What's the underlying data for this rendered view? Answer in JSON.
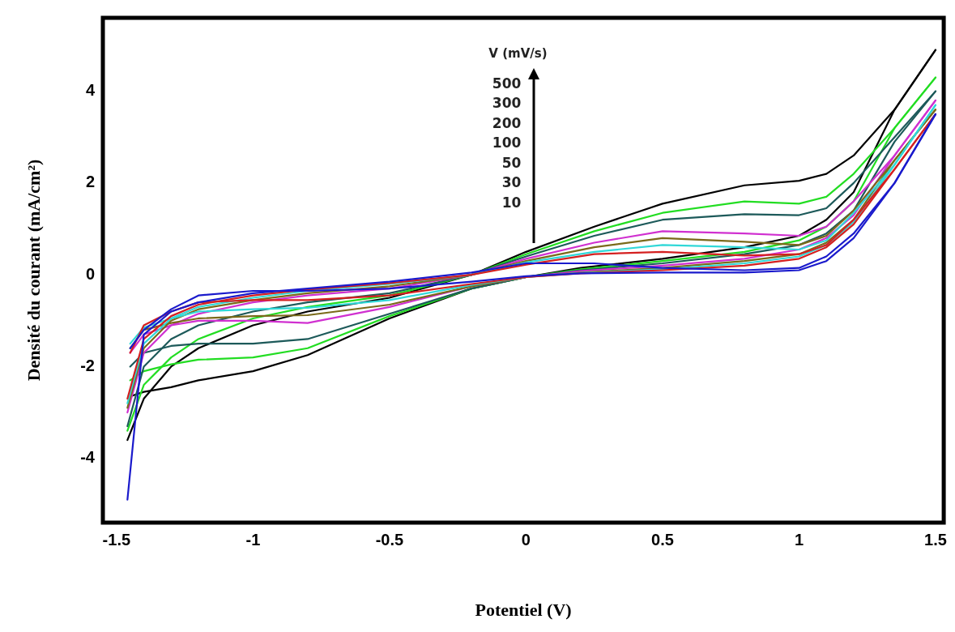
{
  "chart_data": {
    "type": "line",
    "xlabel": "Potentiel (V)",
    "ylabel": "Densité du courant (mA/cm²)",
    "annotations": [
      "V (mV/s)",
      "500",
      "300",
      "200",
      "100",
      "50",
      "30",
      "10"
    ],
    "xlim": [
      -1.55,
      1.53
    ],
    "ylim": [
      -5.4,
      5.6
    ],
    "xticks": [
      -1.5,
      -1,
      -0.5,
      0,
      0.5,
      1,
      1.5
    ],
    "yticks": [
      -4,
      -2,
      0,
      2,
      4
    ],
    "grid": false,
    "legend": false,
    "marker": "none",
    "line_style": "solid",
    "series": [
      {
        "color": "#1a1acc",
        "x": [
          -1.46,
          -1.4,
          -1.3,
          -1.2,
          -1.0,
          -0.8,
          -0.5,
          -0.2,
          0,
          0.25,
          0.5,
          0.8,
          1.0,
          1.1,
          1.2,
          1.35,
          1.5
        ],
        "values": [
          -4.9,
          -1.3,
          -0.8,
          -0.6,
          -0.4,
          -0.3,
          -0.15,
          0.05,
          0.25,
          0.25,
          0.15,
          0.1,
          0.15,
          0.4,
          0.9,
          2.0,
          3.5
        ]
      },
      {
        "color": "#1a1acc",
        "x": [
          -1.45,
          -1.4,
          -1.3,
          -1.2,
          -1.0,
          -0.8,
          -0.5,
          -0.2,
          0,
          0.2,
          0.5,
          0.8,
          1.0,
          1.1,
          1.2,
          1.35,
          1.5
        ],
        "values": [
          -1.6,
          -1.2,
          -0.75,
          -0.45,
          -0.35,
          -0.35,
          -0.3,
          -0.15,
          -0.03,
          0.03,
          0.05,
          0.05,
          0.1,
          0.3,
          0.8,
          2.0,
          3.5
        ]
      },
      {
        "color": "#d42020",
        "x": [
          -1.46,
          -1.4,
          -1.3,
          -1.2,
          -1.0,
          -0.8,
          -0.5,
          -0.2,
          0,
          0.25,
          0.5,
          0.8,
          1.0,
          1.1,
          1.2,
          1.35,
          1.5
        ],
        "values": [
          -2.7,
          -1.4,
          -0.9,
          -0.65,
          -0.45,
          -0.32,
          -0.18,
          0.0,
          0.22,
          0.45,
          0.5,
          0.42,
          0.45,
          0.65,
          1.2,
          2.3,
          3.5
        ]
      },
      {
        "color": "#d42020",
        "x": [
          -1.45,
          -1.4,
          -1.3,
          -1.2,
          -1.0,
          -0.8,
          -0.5,
          -0.2,
          0,
          0.2,
          0.5,
          0.8,
          1.0,
          1.1,
          1.2,
          1.35,
          1.5
        ],
        "values": [
          -1.7,
          -1.1,
          -0.8,
          -0.6,
          -0.55,
          -0.55,
          -0.45,
          -0.2,
          -0.05,
          0.03,
          0.1,
          0.2,
          0.35,
          0.6,
          1.1,
          2.3,
          3.5
        ]
      },
      {
        "color": "#30d8d8",
        "x": [
          -1.46,
          -1.4,
          -1.3,
          -1.2,
          -1.0,
          -0.8,
          -0.5,
          -0.2,
          0,
          0.25,
          0.5,
          0.8,
          1.0,
          1.1,
          1.2,
          1.35,
          1.5
        ],
        "values": [
          -2.8,
          -1.5,
          -0.95,
          -0.7,
          -0.5,
          -0.35,
          -0.2,
          0.0,
          0.27,
          0.5,
          0.65,
          0.6,
          0.55,
          0.75,
          1.35,
          2.4,
          3.7
        ]
      },
      {
        "color": "#30d8d8",
        "x": [
          -1.45,
          -1.4,
          -1.3,
          -1.2,
          -1.0,
          -0.8,
          -0.5,
          -0.2,
          0,
          0.2,
          0.5,
          0.8,
          1.0,
          1.1,
          1.2,
          1.35,
          1.5
        ],
        "values": [
          -1.5,
          -1.15,
          -0.95,
          -0.8,
          -0.75,
          -0.72,
          -0.55,
          -0.22,
          -0.05,
          0.04,
          0.12,
          0.25,
          0.4,
          0.65,
          1.15,
          2.4,
          3.7
        ]
      },
      {
        "color": "#7a6a1a",
        "x": [
          -1.46,
          -1.4,
          -1.3,
          -1.2,
          -1.0,
          -0.8,
          -0.5,
          -0.2,
          0,
          0.25,
          0.5,
          0.8,
          1.0,
          1.1,
          1.2,
          1.35,
          1.5
        ],
        "values": [
          -2.9,
          -1.6,
          -1.0,
          -0.75,
          -0.55,
          -0.4,
          -0.25,
          0.0,
          0.3,
          0.6,
          0.8,
          0.72,
          0.65,
          0.85,
          1.4,
          2.5,
          3.6
        ]
      },
      {
        "color": "#7a6a1a",
        "x": [
          -1.45,
          -1.4,
          -1.3,
          -1.2,
          -1.0,
          -0.8,
          -0.5,
          -0.2,
          0,
          0.2,
          0.5,
          0.8,
          1.0,
          1.1,
          1.2,
          1.35,
          1.5
        ],
        "values": [
          -1.6,
          -1.2,
          -1.05,
          -0.95,
          -0.9,
          -0.88,
          -0.65,
          -0.25,
          -0.05,
          0.05,
          0.15,
          0.3,
          0.45,
          0.7,
          1.2,
          2.5,
          3.6
        ]
      },
      {
        "color": "#d030d0",
        "x": [
          -1.46,
          -1.4,
          -1.3,
          -1.2,
          -1.0,
          -0.8,
          -0.5,
          -0.2,
          0,
          0.25,
          0.5,
          0.8,
          1.0,
          1.1,
          1.2,
          1.35,
          1.5
        ],
        "values": [
          -3.0,
          -1.7,
          -1.1,
          -0.85,
          -0.6,
          -0.45,
          -0.3,
          0.0,
          0.35,
          0.7,
          0.95,
          0.9,
          0.85,
          1.05,
          1.6,
          2.6,
          3.8
        ]
      },
      {
        "color": "#d030d0",
        "x": [
          -1.45,
          -1.4,
          -1.3,
          -1.2,
          -1.0,
          -0.8,
          -0.5,
          -0.2,
          0,
          0.2,
          0.5,
          0.8,
          1.0,
          1.1,
          1.2,
          1.35,
          1.5
        ],
        "values": [
          -1.7,
          -1.3,
          -1.1,
          -1.0,
          -1.0,
          -1.05,
          -0.7,
          -0.25,
          -0.05,
          0.08,
          0.2,
          0.35,
          0.55,
          0.8,
          1.3,
          2.6,
          3.8
        ]
      },
      {
        "color": "#1d5a5a",
        "x": [
          -1.46,
          -1.4,
          -1.3,
          -1.2,
          -1.0,
          -0.8,
          -0.5,
          -0.2,
          0,
          0.25,
          0.5,
          0.8,
          1.0,
          1.1,
          1.2,
          1.35,
          1.5
        ],
        "values": [
          -3.3,
          -2.0,
          -1.4,
          -1.1,
          -0.8,
          -0.6,
          -0.4,
          0.0,
          0.4,
          0.85,
          1.2,
          1.32,
          1.3,
          1.45,
          2.0,
          3.0,
          4.0
        ]
      },
      {
        "color": "#1d5a5a",
        "x": [
          -1.45,
          -1.4,
          -1.3,
          -1.2,
          -1.0,
          -0.8,
          -0.5,
          -0.2,
          0,
          0.2,
          0.5,
          0.8,
          1.0,
          1.1,
          1.2,
          1.35,
          1.5
        ],
        "values": [
          -2.0,
          -1.7,
          -1.55,
          -1.5,
          -1.5,
          -1.4,
          -0.85,
          -0.3,
          -0.05,
          0.1,
          0.25,
          0.45,
          0.65,
          0.9,
          1.4,
          2.9,
          4.0
        ]
      },
      {
        "color": "#22dd22",
        "x": [
          -1.46,
          -1.4,
          -1.3,
          -1.2,
          -1.0,
          -0.8,
          -0.5,
          -0.2,
          0,
          0.25,
          0.5,
          0.8,
          1.0,
          1.1,
          1.2,
          1.35,
          1.5
        ],
        "values": [
          -3.4,
          -2.4,
          -1.8,
          -1.4,
          -0.95,
          -0.7,
          -0.45,
          0.0,
          0.45,
          0.95,
          1.35,
          1.6,
          1.55,
          1.7,
          2.2,
          3.2,
          4.3
        ]
      },
      {
        "color": "#22dd22",
        "x": [
          -1.45,
          -1.4,
          -1.3,
          -1.2,
          -1.0,
          -0.8,
          -0.5,
          -0.2,
          0,
          0.2,
          0.5,
          0.8,
          1.0,
          1.1,
          1.2,
          1.35,
          1.5
        ],
        "values": [
          -2.3,
          -2.1,
          -1.95,
          -1.85,
          -1.8,
          -1.6,
          -0.9,
          -0.3,
          -0.05,
          0.12,
          0.3,
          0.5,
          0.75,
          1.05,
          1.6,
          3.2,
          4.3
        ]
      },
      {
        "color": "#000000",
        "x": [
          -1.46,
          -1.4,
          -1.3,
          -1.2,
          -1.0,
          -0.8,
          -0.5,
          -0.2,
          0,
          0.25,
          0.5,
          0.8,
          1.0,
          1.1,
          1.2,
          1.35,
          1.5
        ],
        "values": [
          -3.6,
          -2.7,
          -2.0,
          -1.6,
          -1.1,
          -0.8,
          -0.5,
          0.0,
          0.5,
          1.05,
          1.55,
          1.95,
          2.05,
          2.2,
          2.6,
          3.6,
          4.9
        ]
      },
      {
        "color": "#000000",
        "x": [
          -1.45,
          -1.4,
          -1.3,
          -1.2,
          -1.0,
          -0.8,
          -0.5,
          -0.2,
          0,
          0.2,
          0.5,
          0.8,
          1.0,
          1.1,
          1.2,
          1.35,
          1.5
        ],
        "values": [
          -2.65,
          -2.55,
          -2.45,
          -2.3,
          -2.1,
          -1.75,
          -0.95,
          -0.3,
          -0.05,
          0.15,
          0.35,
          0.6,
          0.85,
          1.2,
          1.8,
          3.6,
          4.9
        ]
      }
    ]
  }
}
